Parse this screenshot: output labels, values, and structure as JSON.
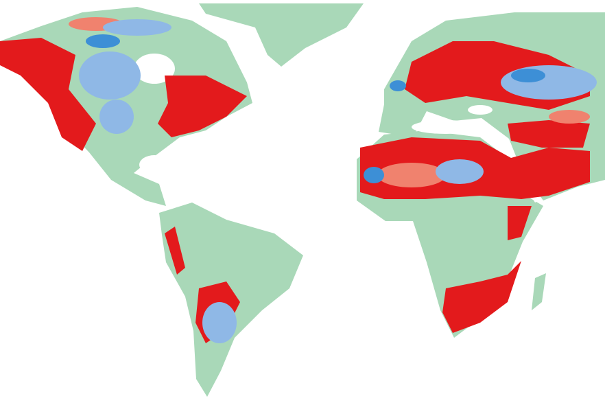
{
  "map": {
    "projection": "equirectangular-world",
    "colors": {
      "background": "#ffffff",
      "land_base": "#a9d8b8",
      "class_high": "#e31a1c",
      "class_mid_high": "#f0826e",
      "class_mid_low": "#8fb8e6",
      "class_low": "#3d8fd6"
    }
  }
}
